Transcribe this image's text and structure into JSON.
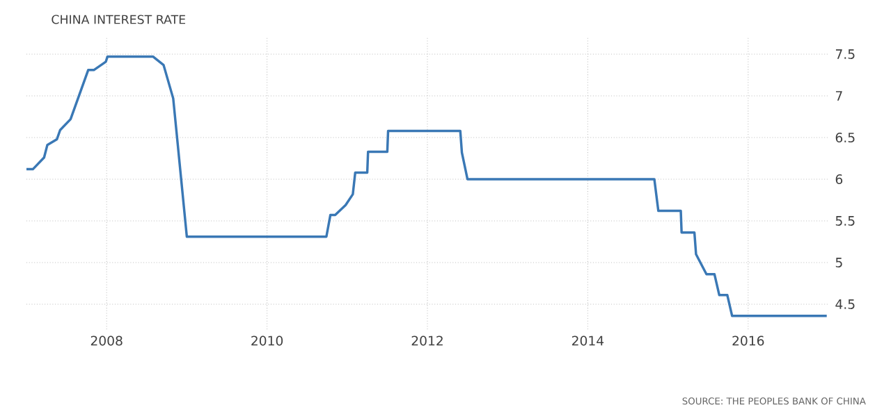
{
  "chart_data": {
    "type": "line",
    "title": "CHINA INTEREST RATE",
    "x": [
      2007.0,
      2007.08,
      2007.22,
      2007.26,
      2007.38,
      2007.42,
      2007.55,
      2007.77,
      2007.84,
      2007.99,
      2008.01,
      2008.58,
      2008.71,
      2008.83,
      2009.0,
      2010.74,
      2010.79,
      2010.85,
      2010.98,
      2011.07,
      2011.1,
      2011.25,
      2011.26,
      2011.5,
      2011.51,
      2012.41,
      2012.43,
      2012.5,
      2014.83,
      2014.88,
      2015.16,
      2015.17,
      2015.33,
      2015.35,
      2015.48,
      2015.58,
      2015.64,
      2015.74,
      2015.8,
      2016.98
    ],
    "values": [
      6.12,
      6.12,
      6.26,
      6.41,
      6.48,
      6.59,
      6.72,
      7.31,
      7.31,
      7.41,
      7.47,
      7.47,
      7.37,
      6.97,
      5.31,
      5.31,
      5.57,
      5.57,
      5.69,
      5.82,
      6.08,
      6.08,
      6.33,
      6.33,
      6.58,
      6.58,
      6.32,
      6.0,
      6.0,
      5.62,
      5.62,
      5.36,
      5.36,
      5.1,
      4.86,
      4.86,
      4.61,
      4.61,
      4.36,
      4.36
    ],
    "color": "#3a78b5",
    "xlim": [
      2007.0,
      2017.0
    ],
    "ylim": [
      4.2,
      7.7
    ],
    "xticks": [
      2008,
      2010,
      2012,
      2014,
      2016
    ],
    "yticks": [
      4.5,
      5,
      5.5,
      6,
      6.5,
      7,
      7.5
    ],
    "grid": true,
    "annotations": [
      "SOURCE: THE PEOPLES BANK OF CHINA"
    ]
  }
}
